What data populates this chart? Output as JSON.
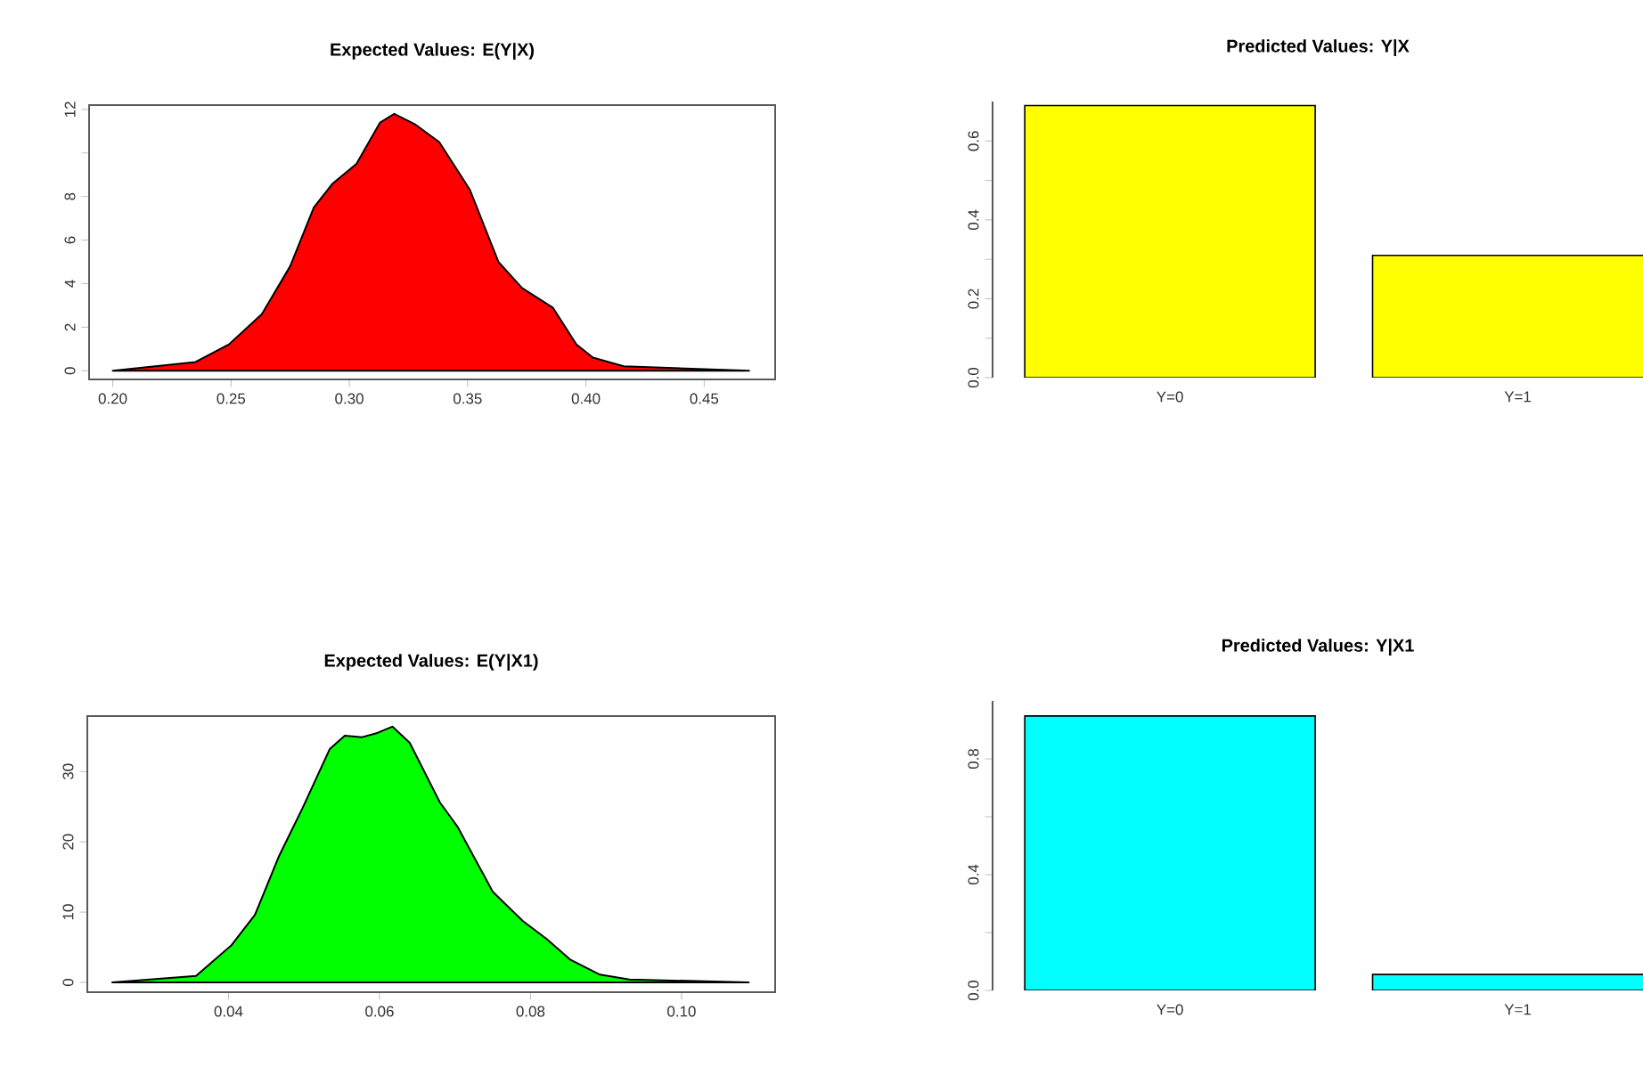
{
  "chart_data": [
    {
      "type": "area",
      "title": "Expected Values: E(Y|X)",
      "color": "#ff0000",
      "x": [
        0.2,
        0.235,
        0.249,
        0.263,
        0.275,
        0.285,
        0.293,
        0.303,
        0.313,
        0.319,
        0.328,
        0.338,
        0.351,
        0.363,
        0.373,
        0.386,
        0.396,
        0.403,
        0.416,
        0.469
      ],
      "values": [
        0,
        0.4,
        1.2,
        2.6,
        4.8,
        7.5,
        8.6,
        9.5,
        11.4,
        11.8,
        11.3,
        10.5,
        8.3,
        5.0,
        3.8,
        2.9,
        1.2,
        0.6,
        0.2,
        0
      ],
      "xlim": [
        0.19,
        0.48
      ],
      "ylim": [
        -0.4,
        12.2
      ],
      "xticks": [
        {
          "value": 0.2,
          "label": "0.20"
        },
        0.25,
        {
          "value": 0.3,
          "label": "0.30"
        },
        0.35,
        {
          "value": 0.4,
          "label": "0.40"
        },
        0.45
      ],
      "yticks": [
        0,
        2,
        4,
        6,
        8,
        {
          "value": 10,
          "label": null
        },
        12
      ]
    },
    {
      "type": "bar",
      "title": "Predicted Values: Y|X",
      "categories": [
        "Y=0",
        "Y=1"
      ],
      "values": [
        0.69,
        0.31
      ],
      "colors": [
        "#ffff00",
        "#ffff00"
      ],
      "ylim": [
        0,
        0.7
      ],
      "yticks": [
        {
          "value": 0,
          "label": "0.0"
        },
        {
          "value": 0.1,
          "label": null
        },
        {
          "value": 0.2,
          "label": "0.2"
        },
        {
          "value": 0.3,
          "label": null
        },
        {
          "value": 0.4,
          "label": "0.4"
        },
        {
          "value": 0.5,
          "label": null
        },
        {
          "value": 0.6,
          "label": "0.6"
        }
      ]
    },
    {
      "type": "area",
      "title": "Expected Values: E(Y|X1)",
      "color": "#00ff00",
      "x": [
        0.0246,
        0.0357,
        0.0404,
        0.0435,
        0.0467,
        0.0498,
        0.0534,
        0.0554,
        0.0577,
        0.0597,
        0.0617,
        0.064,
        0.068,
        0.0703,
        0.075,
        0.079,
        0.0821,
        0.0853,
        0.0892,
        0.0931,
        0.1089
      ],
      "values": [
        0,
        0.9,
        5.3,
        9.6,
        18,
        24.8,
        33.2,
        35.1,
        34.9,
        35.5,
        36.4,
        34.1,
        25.6,
        22.2,
        12.9,
        8.7,
        6.2,
        3.2,
        1.1,
        0.4,
        0
      ],
      "xlim": [
        0.0213,
        0.1124
      ],
      "ylim": [
        -1.4,
        37.9
      ],
      "xticks": [
        0.04,
        0.06,
        0.08,
        {
          "value": 0.1,
          "label": "0.10"
        }
      ],
      "yticks": [
        0,
        10,
        20,
        30
      ]
    },
    {
      "type": "bar",
      "title": "Predicted Values: Y|X1",
      "categories": [
        "Y=0",
        "Y=1"
      ],
      "values": [
        0.948,
        0.055
      ],
      "colors": [
        "#00ffff",
        "#00ffff"
      ],
      "ylim": [
        0,
        1.0
      ],
      "yticks": [
        {
          "value": 0,
          "label": "0.0"
        },
        {
          "value": 0.2,
          "label": null
        },
        {
          "value": 0.4,
          "label": "0.4"
        },
        {
          "value": 0.6,
          "label": null
        },
        {
          "value": 0.8,
          "label": "0.8"
        }
      ]
    }
  ]
}
